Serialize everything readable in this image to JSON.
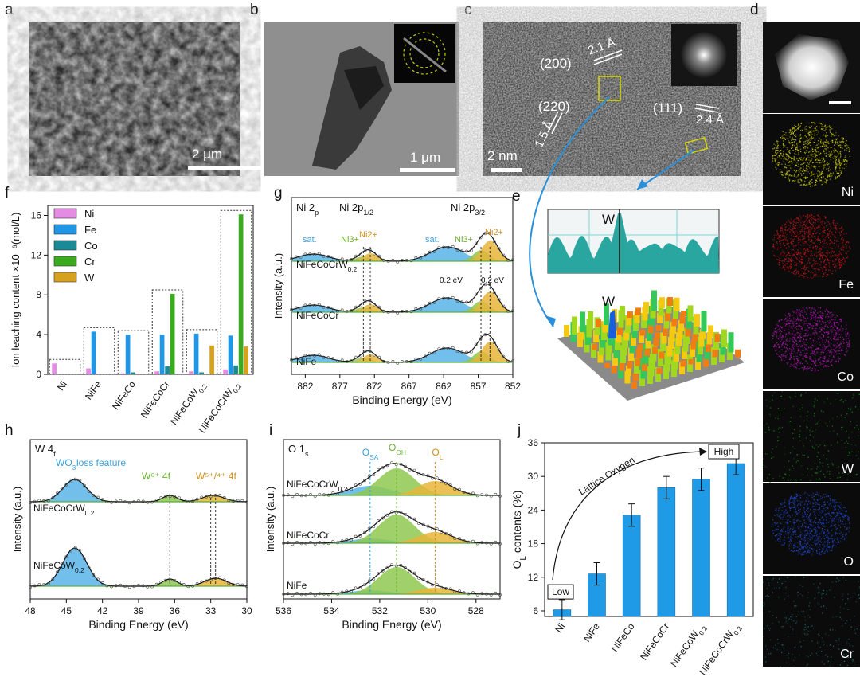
{
  "panels": {
    "a": {
      "label": "a",
      "scalebar": "2 μm"
    },
    "b": {
      "label": "b",
      "scalebar": "1 μm"
    },
    "c": {
      "label": "c",
      "scalebar": "2 nm",
      "annotations": [
        "(200)",
        "2.1 Å",
        "(220)",
        "1.5 Å",
        "(111)",
        "2.4 Å"
      ]
    },
    "d": {
      "label": "d",
      "maps": [
        {
          "element": "Ni",
          "color": "#c8c800"
        },
        {
          "element": "Fe",
          "color": "#c81414"
        },
        {
          "element": "Co",
          "color": "#b414b4"
        },
        {
          "element": "W",
          "color": "#0f8c0f"
        },
        {
          "element": "O",
          "color": "#1e46c8"
        },
        {
          "element": "Cr",
          "color": "#146e6e"
        }
      ]
    },
    "e": {
      "label": "e",
      "peak_label_top": "W",
      "peak_label_3d": "W"
    },
    "f": {
      "label": "f"
    },
    "g": {
      "label": "g"
    },
    "h": {
      "label": "h"
    },
    "i": {
      "label": "i"
    },
    "j": {
      "label": "j"
    }
  },
  "chart_data": [
    {
      "id": "f",
      "type": "bar",
      "ylabel": "Ion leaching content ×10⁻⁶(mol/L)",
      "ylim": [
        0,
        17
      ],
      "yticks": [
        0,
        4,
        8,
        12,
        16
      ],
      "categories": [
        "Ni",
        "NiFe",
        "NiFeCo",
        "NiFeCoCr",
        "NiFeCoW0.2",
        "NiFeCoCrW0.2"
      ],
      "category_labels": [
        [
          "Ni",
          ""
        ],
        [
          "NiFe",
          ""
        ],
        [
          "NiFeCo",
          ""
        ],
        [
          "NiFeCoCr",
          ""
        ],
        [
          "NiFeCoW",
          "0.2"
        ],
        [
          "NiFeCoCrW",
          "0.2"
        ]
      ],
      "legend_position": "top-left",
      "series": [
        {
          "name": "Ni",
          "color": "#e48be4",
          "values": [
            1.1,
            0.6,
            0.1,
            0.3,
            0.3,
            0.5
          ]
        },
        {
          "name": "Fe",
          "color": "#1f96e6",
          "values": [
            0,
            4.3,
            4.0,
            4.0,
            4.1,
            3.9
          ]
        },
        {
          "name": "Co",
          "color": "#1a8a96",
          "values": [
            0,
            0,
            0.2,
            0.8,
            0.2,
            0.9
          ]
        },
        {
          "name": "Cr",
          "color": "#3aaa1e",
          "values": [
            0,
            0,
            0,
            8.1,
            0,
            16.1
          ]
        },
        {
          "name": "W",
          "color": "#d6a21e",
          "values": [
            0,
            0,
            0,
            0,
            2.9,
            2.8
          ]
        }
      ]
    },
    {
      "id": "g",
      "type": "line",
      "xlabel": "Binding Energy (eV)",
      "ylabel": "Intensity (a.u.)",
      "xlim": [
        884,
        852
      ],
      "xticks": [
        882,
        877,
        872,
        867,
        862,
        857,
        852
      ],
      "annotations": {
        "core": "Ni 2p",
        "p12": "Ni 2p1/2",
        "p32": "Ni 2p3/2",
        "sat": "sat.",
        "ni3": "Ni3+",
        "ni2": "Ni2+",
        "shift": "0.2 eV"
      },
      "series": [
        {
          "name": "NiFeCoCrW0.2",
          "label_main": "NiFeCoCrW",
          "label_sub": "0.2"
        },
        {
          "name": "NiFeCoCr",
          "label_main": "NiFeCoCr",
          "label_sub": ""
        },
        {
          "name": "NiFe",
          "label_main": "NiFe",
          "label_sub": ""
        }
      ]
    },
    {
      "id": "h",
      "type": "line",
      "xlabel": "Binding Energy (eV)",
      "ylabel": "Intensity (a.u.)",
      "xlim": [
        48,
        30
      ],
      "xticks": [
        48,
        45,
        42,
        39,
        36,
        33,
        30
      ],
      "annotations": {
        "core": "W 4f",
        "loss": "WO3 loss feature",
        "w6": "W6+ 4f7/2",
        "w54": "W5+/4+ 4f7/2"
      },
      "series": [
        {
          "name": "NiFeCoCrW0.2",
          "label_main": "NiFeCoCrW",
          "label_sub": "0.2"
        },
        {
          "name": "NiFeCoW0.2",
          "label_main": "NiFeCoW",
          "label_sub": "0.2"
        }
      ]
    },
    {
      "id": "i",
      "type": "line",
      "xlabel": "Binding Energy (eV)",
      "ylabel": "Intensity (a.u.)",
      "xlim": [
        536,
        527
      ],
      "xticks": [
        536,
        534,
        532,
        530,
        528
      ],
      "annotations": {
        "core": "O 1s",
        "osa": "OSA",
        "ooh": "OOH",
        "ol": "OL"
      },
      "series": [
        {
          "name": "NiFeCoCrW0.2",
          "label_main": "NiFeCoCrW",
          "label_sub": "0.2"
        },
        {
          "name": "NiFeCoCr",
          "label_main": "NiFeCoCr",
          "label_sub": ""
        },
        {
          "name": "NiFe",
          "label_main": "NiFe",
          "label_sub": ""
        }
      ]
    },
    {
      "id": "j",
      "type": "bar",
      "ylabel": "OL contents (%)",
      "ylim": [
        5,
        36
      ],
      "yticks": [
        6,
        12,
        18,
        24,
        30,
        36
      ],
      "categories": [
        "Ni",
        "NiFe",
        "NiFeCo",
        "NiFeCoCr",
        "NiFeCoW0.2",
        "NiFeCoCrW0.2"
      ],
      "category_labels": [
        [
          "Ni",
          ""
        ],
        [
          "NiFe",
          ""
        ],
        [
          "NiFeCo",
          ""
        ],
        [
          "NiFeCoCr",
          ""
        ],
        [
          "NiFeCoW",
          "0.2"
        ],
        [
          "NiFeCoCrW",
          "0.2"
        ]
      ],
      "values": [
        6.2,
        12.6,
        23.1,
        28.0,
        29.5,
        32.3
      ],
      "errors": [
        1.8,
        2.0,
        2.0,
        2.0,
        2.0,
        2.0
      ],
      "color": "#1f9ae6",
      "annotations": {
        "low": "Low",
        "high": "High",
        "arrow": "Lattice Oxygen"
      }
    }
  ]
}
